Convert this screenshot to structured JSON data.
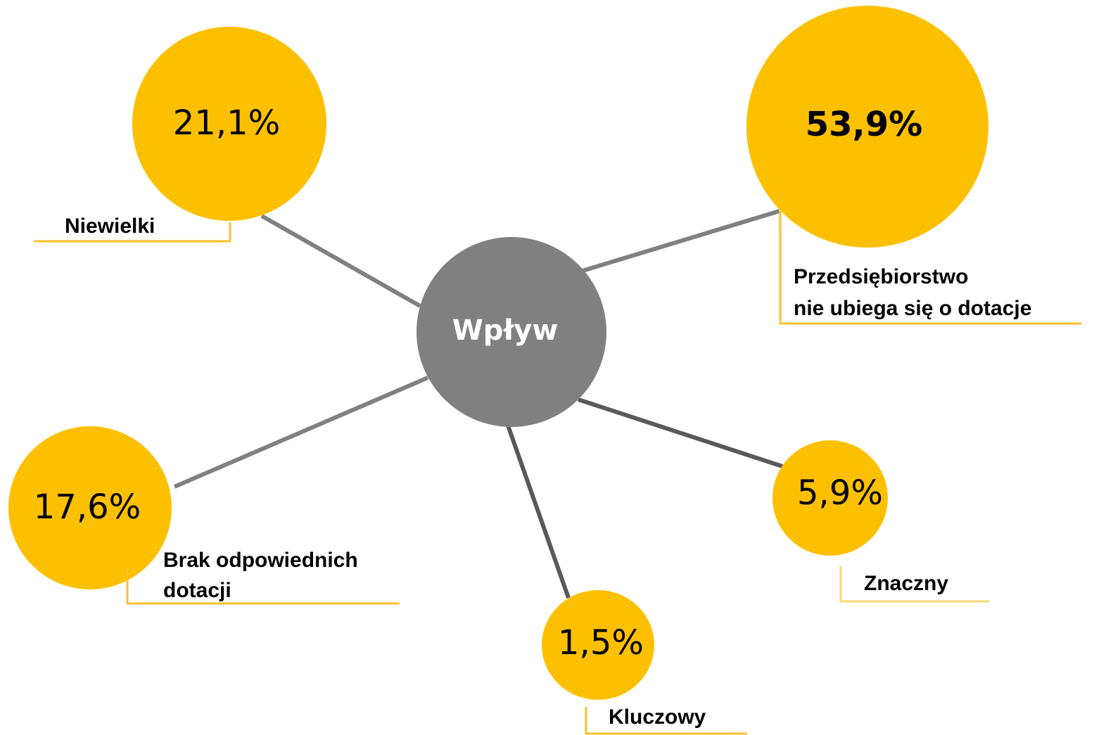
{
  "center": {
    "label": "Wpływ"
  },
  "nodes": [
    {
      "value": "21,1%",
      "label": [
        "Niewielki"
      ]
    },
    {
      "value": "53,9%",
      "label": [
        "Przedsiębiorstwo",
        "nie ubiega się o dotacje"
      ]
    },
    {
      "value": "17,6%",
      "label": [
        "Brak odpowiednich",
        "dotacji"
      ]
    },
    {
      "value": "5,9%",
      "label": [
        "Znaczny"
      ]
    },
    {
      "value": "1,5%",
      "label": [
        "Kluczowy"
      ]
    }
  ]
}
